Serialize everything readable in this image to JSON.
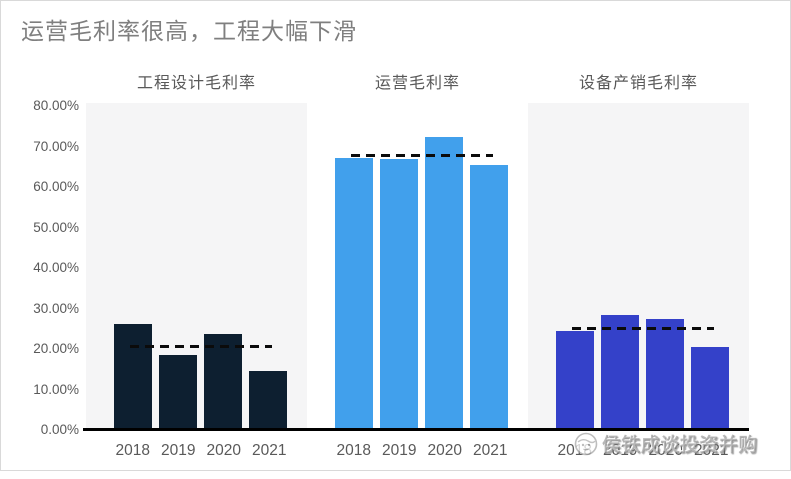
{
  "title": "运营毛利率很高，工程大幅下滑",
  "watermark": {
    "text": "侯铁成谈投资并购",
    "logo_icon": "taiji-face-logo"
  },
  "colors": {
    "title_text": "#7f7f7f",
    "axis_text": "#595959",
    "gridline": "#eaeaea",
    "baseline": "#000000",
    "average_line": "#0b0b0b",
    "panel_alt_background": "#f5f5f6",
    "series_engineering": "#0d1f30",
    "series_operation": "#41a0ec",
    "series_equipment": "#3441c9"
  },
  "chart_data": {
    "type": "bar",
    "title": "运营毛利率很高，工程大幅下滑",
    "categories": [
      "2018",
      "2019",
      "2020",
      "2021"
    ],
    "xlabel": "",
    "ylabel": "",
    "ylim": [
      0,
      80
    ],
    "y_tick_step": 10,
    "y_tick_labels": [
      "80.00%",
      "70.00%",
      "60.00%",
      "50.00%",
      "40.00%",
      "30.00%",
      "20.00%",
      "10.00%",
      "0.00%"
    ],
    "grid": true,
    "legend": "none",
    "annotation": "dashed black line in each panel marks the 4-year average",
    "series": [
      {
        "name": "工程设计毛利率",
        "values": [
          26.3,
          18.6,
          23.6,
          14.5
        ],
        "average_line": 20.8,
        "color": "#0d1f30",
        "panel_background": "#f5f5f6"
      },
      {
        "name": "运营毛利率",
        "values": [
          67.2,
          67.0,
          72.4,
          65.5
        ],
        "average_line": 68.0,
        "color": "#41a0ec",
        "panel_background": "#ffffff"
      },
      {
        "name": "设备产销毛利率",
        "values": [
          24.5,
          28.4,
          27.3,
          20.5
        ],
        "average_line": 25.2,
        "color": "#3441c9",
        "panel_background": "#f5f5f6"
      }
    ]
  }
}
